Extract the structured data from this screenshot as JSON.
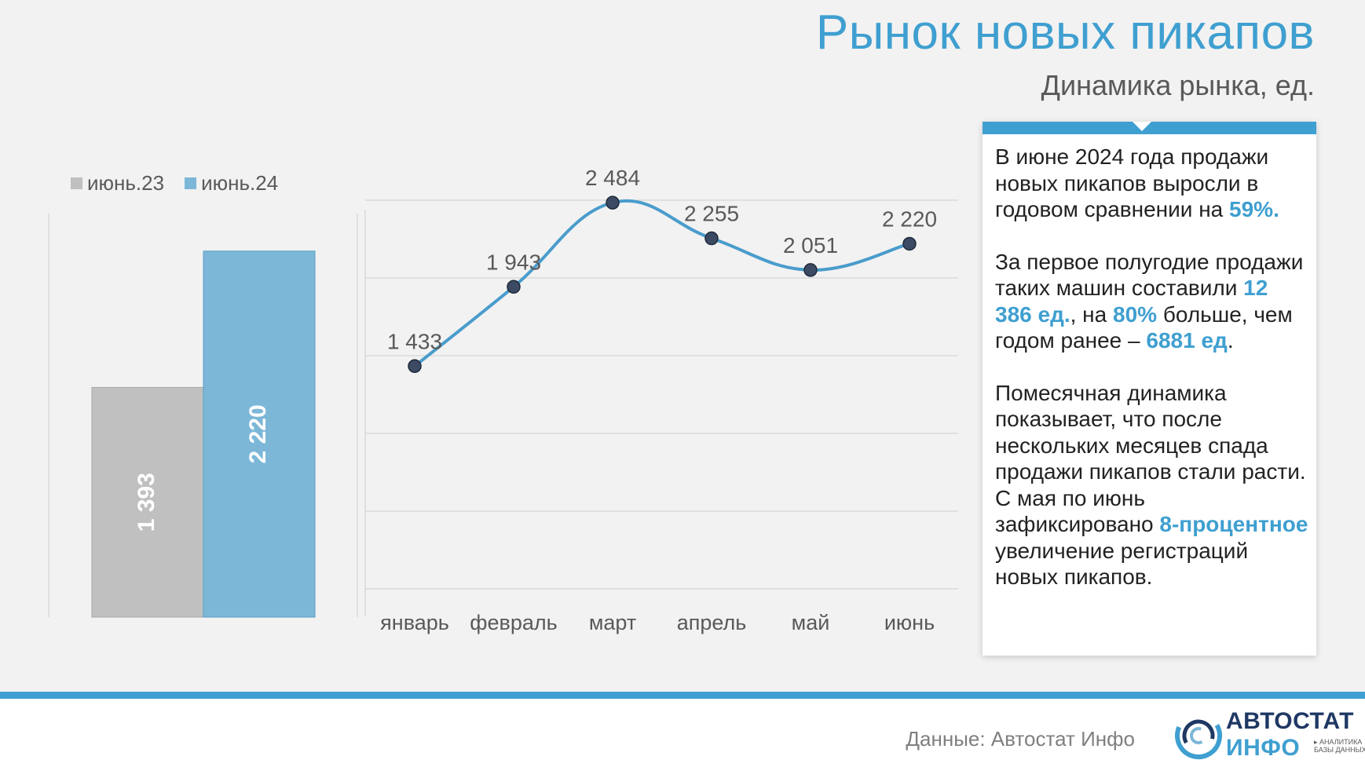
{
  "header": {
    "title": "Рынок новых пикапов",
    "subtitle": "Динамика рынка, ед."
  },
  "colors": {
    "accent": "#3f9fd0",
    "bar_2023": "#c0c0c0",
    "bar_2024": "#7cb7d8",
    "line": "#4a9ccc",
    "marker": "#3c4a63"
  },
  "chart_data": [
    {
      "type": "bar",
      "categories": [
        "июнь.23",
        "июнь.24"
      ],
      "values": [
        1393,
        2220
      ],
      "labels": [
        "1 393",
        "2 220"
      ],
      "legend": [
        "июнь.23",
        "июнь.24"
      ],
      "legend_position": "top-left",
      "ylim": [
        0,
        2600
      ],
      "grid": false
    },
    {
      "type": "line",
      "categories": [
        "январь",
        "февраль",
        "март",
        "апрель",
        "май",
        "июнь"
      ],
      "values": [
        1433,
        1943,
        2484,
        2255,
        2051,
        2220
      ],
      "labels": [
        "1 433",
        "1 943",
        "2 484",
        "2 255",
        "2 051",
        "2 220"
      ],
      "ylim": [
        0,
        2500
      ],
      "grid": true,
      "smooth": true
    }
  ],
  "panel": {
    "p1_before": "В июне 2024 года продажи новых пикапов выросли в годовом сравнении на ",
    "p1_hl": "59%.",
    "p2_a": "За первое полугодие продажи таких машин составили ",
    "p2_hl1": "12 386 ед.",
    "p2_b": ", на ",
    "p2_hl2": "80%",
    "p2_c": " больше, чем годом ранее – ",
    "p2_hl3": "6881 ед",
    "p2_d": ".",
    "p3_a": "Помесячная динамика показывает, что после нескольких месяцев спада продажи пикапов стали расти. С мая по июнь зафиксировано ",
    "p3_hl": "8-процентное",
    "p3_b": " увеличение регистраций новых пикапов."
  },
  "footer": {
    "source": "Данные: Автостат Инфо",
    "logo_line1": "АВТОСТАТ",
    "logo_line2": "ИНФО",
    "logo_sub1": "▸ АНАЛИТИКА",
    "logo_sub2": "БАЗЫ ДАННЫХ"
  }
}
